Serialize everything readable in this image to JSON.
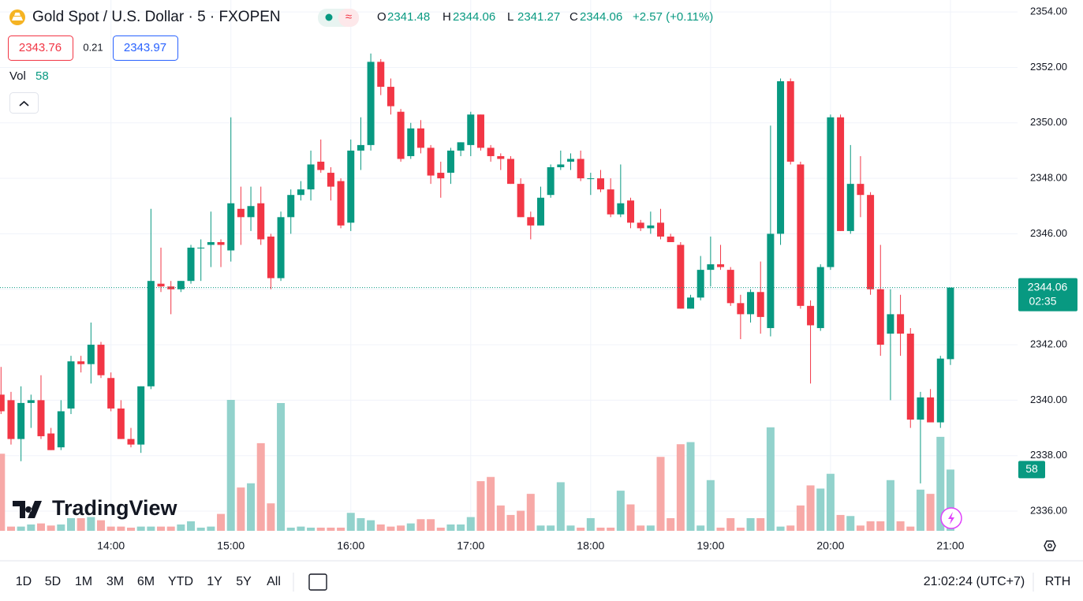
{
  "header": {
    "title": "Gold Spot / U.S. Dollar · 5 · FXOPEN",
    "ohlc_labels": [
      "O",
      "H",
      "L",
      "C"
    ],
    "change": "+2.57 (+0.11%)",
    "bid": 2343.76,
    "spread": 0.21,
    "ask": 2343.97,
    "volume_label": "Vol",
    "countdown": "02:35",
    "logo": "TradingView"
  },
  "toolbar": {
    "ranges": [
      "1D",
      "5D",
      "1M",
      "3M",
      "6M",
      "YTD",
      "1Y",
      "5Y",
      "All"
    ],
    "clock": "21:02:24 (UTC+7)",
    "session": "RTH"
  },
  "chart_data": {
    "type": "candlestick",
    "categories": [
      null,
      null,
      null,
      null,
      null,
      null,
      null,
      null,
      null,
      null,
      null,
      "14:00",
      null,
      null,
      null,
      null,
      null,
      null,
      null,
      null,
      null,
      null,
      null,
      "15:00",
      null,
      null,
      null,
      null,
      null,
      null,
      null,
      null,
      null,
      null,
      null,
      "16:00",
      null,
      null,
      null,
      null,
      null,
      null,
      null,
      null,
      null,
      null,
      null,
      "17:00",
      null,
      null,
      null,
      null,
      null,
      null,
      null,
      null,
      null,
      null,
      null,
      "18:00",
      null,
      null,
      null,
      null,
      null,
      null,
      null,
      null,
      null,
      null,
      null,
      "19:00",
      null,
      null,
      null,
      null,
      null,
      null,
      null,
      null,
      null,
      null,
      null,
      "20:00",
      null,
      null,
      null,
      null,
      null,
      null,
      null,
      null,
      null,
      null,
      null,
      "21:00"
    ],
    "open": [
      2340.2,
      2340,
      2338.6,
      2339.9,
      2340,
      2338.8,
      2338.3,
      2339.7,
      2341.4,
      2341.3,
      2342,
      2340.8,
      2339.7,
      2338.6,
      2338.4,
      2340.5,
      2344.2,
      2344.1,
      2344,
      2344.3,
      2345.5,
      2345.6,
      2345.7,
      2345.4,
      2346.9,
      2346.6,
      2347.1,
      2345.9,
      2344.4,
      2346.6,
      2347.4,
      2347.6,
      2348.6,
      2348.2,
      2347.9,
      2346.4,
      2349,
      2349.2,
      2352.2,
      2351.3,
      2350.4,
      2348.8,
      2349.8,
      2349.1,
      2348.2,
      2348.2,
      2349,
      2349.2,
      2350.3,
      2349.1,
      2348.8,
      2348.7,
      2347.8,
      2346.6,
      2346.3,
      2347.4,
      2348.4,
      2348.6,
      2348.7,
      2348,
      2348,
      2347.6,
      2346.7,
      2347.2,
      2346.4,
      2346.2,
      2346.4,
      2345.9,
      2345.6,
      2343.3,
      2343.7,
      2344.7,
      2344.9,
      2344.7,
      2343.5,
      2343.1,
      2343.9,
      2342.6,
      2346,
      2351.5,
      2348.5,
      2343.4,
      2342.6,
      2344.8,
      2350.2,
      2346.1,
      2347.8,
      2347.4,
      2344,
      2342.4,
      2343.1,
      2342.4,
      2339.3,
      2340.1,
      2339.2,
      2341.48
    ],
    "high": [
      2341.2,
      2340.3,
      2340.5,
      2340.2,
      2340.9,
      2339,
      2340,
      2341.6,
      2341.6,
      2342.8,
      2342.1,
      2341,
      2340,
      2339,
      2340.5,
      2346.9,
      2345.5,
      2344.3,
      2344.3,
      2345.6,
      2345.8,
      2346.8,
      2345.8,
      2350.2,
      2347.7,
      2347.7,
      2347.7,
      2346,
      2346.8,
      2347.6,
      2347.9,
      2349,
      2349.4,
      2348.4,
      2348,
      2349.4,
      2350.2,
      2352.5,
      2352.3,
      2351.6,
      2350.5,
      2350,
      2350.1,
      2349.2,
      2348.6,
      2349.1,
      2349.3,
      2350.4,
      2350.3,
      2349.2,
      2348.9,
      2348.8,
      2348,
      2346.8,
      2347.7,
      2348.5,
      2349,
      2348.9,
      2349,
      2348.2,
      2348.3,
      2348,
      2348.5,
      2347.3,
      2346.5,
      2346.8,
      2346.9,
      2346,
      2345.7,
      2343.8,
      2345.2,
      2345.9,
      2345.6,
      2344.8,
      2343.8,
      2344,
      2345,
      2349.9,
      2351.6,
      2351.6,
      2348.6,
      2343.6,
      2344.9,
      2350.3,
      2350.3,
      2349.2,
      2348.8,
      2347.5,
      2345.6,
      2344,
      2343.8,
      2342.6,
      2340.3,
      2340.4,
      2341.6,
      2344.06
    ],
    "low": [
      2339.5,
      2338.4,
      2337.8,
      2339,
      2338.6,
      2338.2,
      2338.2,
      2339.5,
      2341,
      2340.6,
      2340.8,
      2339.6,
      2338.6,
      2338.3,
      2338.1,
      2340.4,
      2343.9,
      2343.1,
      2343.9,
      2344.2,
      2344.3,
      2344.8,
      2344.8,
      2345,
      2345.6,
      2346.1,
      2345.6,
      2344,
      2344.3,
      2346,
      2347.2,
      2347.2,
      2348.2,
      2347.2,
      2346.2,
      2346.1,
      2348.3,
      2349,
      2351,
      2350.3,
      2348.6,
      2348.7,
      2348.9,
      2347.8,
      2347.3,
      2347.8,
      2348.8,
      2348.8,
      2349,
      2348.6,
      2348.3,
      2347.8,
      2346.6,
      2345.8,
      2346.3,
      2347.3,
      2348.3,
      2348.3,
      2347.9,
      2347.4,
      2347.5,
      2346.6,
      2346.6,
      2346.2,
      2346.1,
      2346,
      2345.8,
      2345.7,
      2343.3,
      2343.3,
      2343.6,
      2344.1,
      2344.7,
      2343.4,
      2342.2,
      2342.8,
      2342.4,
      2342.3,
      2345.6,
      2348.5,
      2343.3,
      2340.6,
      2342.5,
      2344.7,
      2346.1,
      2346,
      2346.6,
      2343.8,
      2341.6,
      2340,
      2341.6,
      2339,
      2337,
      2339.2,
      2339,
      2341.27
    ],
    "close": [
      2339.6,
      2338.6,
      2339.9,
      2340,
      2338.7,
      2338.2,
      2339.6,
      2341.4,
      2341.3,
      2342,
      2340.9,
      2339.7,
      2338.6,
      2338.4,
      2340.5,
      2344.3,
      2344.1,
      2344,
      2344.3,
      2345.5,
      2345.5,
      2345.7,
      2345.6,
      2347.1,
      2346.6,
      2347,
      2345.8,
      2344.4,
      2346.6,
      2347.4,
      2347.6,
      2348.5,
      2348.3,
      2347.7,
      2346.3,
      2349,
      2349.2,
      2352.2,
      2351.3,
      2350.6,
      2348.7,
      2349.8,
      2349.1,
      2348.1,
      2348,
      2349,
      2349.3,
      2350.3,
      2349.1,
      2348.8,
      2348.7,
      2347.8,
      2346.6,
      2346.3,
      2347.3,
      2348.4,
      2348.5,
      2348.7,
      2348,
      2348,
      2347.6,
      2346.7,
      2347.1,
      2346.4,
      2346.2,
      2346.3,
      2345.9,
      2345.7,
      2343.3,
      2343.7,
      2344.7,
      2344.9,
      2344.8,
      2343.5,
      2343.1,
      2343.9,
      2343,
      2346,
      2351.5,
      2348.6,
      2343.4,
      2342.7,
      2344.8,
      2350.2,
      2346.1,
      2347.8,
      2347.4,
      2344,
      2342,
      2343.1,
      2342.4,
      2339.3,
      2340.1,
      2339.2,
      2341.5,
      2344.06
    ],
    "volume": [
      73,
      4,
      4,
      6,
      7,
      5,
      6,
      12,
      12,
      13,
      10,
      4,
      4,
      3,
      4,
      4,
      4,
      4,
      6,
      9,
      3,
      4,
      16,
      124,
      41,
      45,
      83,
      26,
      121,
      3,
      4,
      3,
      3,
      3,
      3,
      17,
      12,
      10,
      6,
      4,
      5,
      7,
      11,
      11,
      3,
      6,
      6,
      13,
      47,
      51,
      24,
      15,
      19,
      35,
      5,
      5,
      46,
      5,
      3,
      12,
      3,
      3,
      38,
      25,
      5,
      5,
      70,
      12,
      82,
      84,
      5,
      48,
      3,
      12,
      3,
      12,
      12,
      98,
      4,
      5,
      24,
      43,
      40,
      54,
      15,
      14,
      5,
      9,
      9,
      48,
      9,
      4,
      39,
      35,
      89,
      58
    ],
    "up_color": "#089981",
    "down_color": "#f23645",
    "up_volume_color": "#92d2cc",
    "down_volume_color": "#f7a9a7",
    "ylim": [
      2335.29,
      2354.43
    ],
    "yticks": [
      {
        "value": 2336,
        "label": "2336.00"
      },
      {
        "value": 2338,
        "label": "2338.00"
      },
      {
        "value": 2340,
        "label": "2340.00"
      },
      {
        "value": 2342,
        "label": "2342.00"
      },
      {
        "value": 2344,
        "label": "2344.00"
      },
      {
        "value": 2346,
        "label": "2346.00"
      },
      {
        "value": 2348,
        "label": "2348.00"
      },
      {
        "value": 2350,
        "label": "2350.00"
      },
      {
        "value": 2352,
        "label": "2352.00"
      },
      {
        "value": 2354,
        "label": "2354.00"
      }
    ],
    "grid": true
  }
}
